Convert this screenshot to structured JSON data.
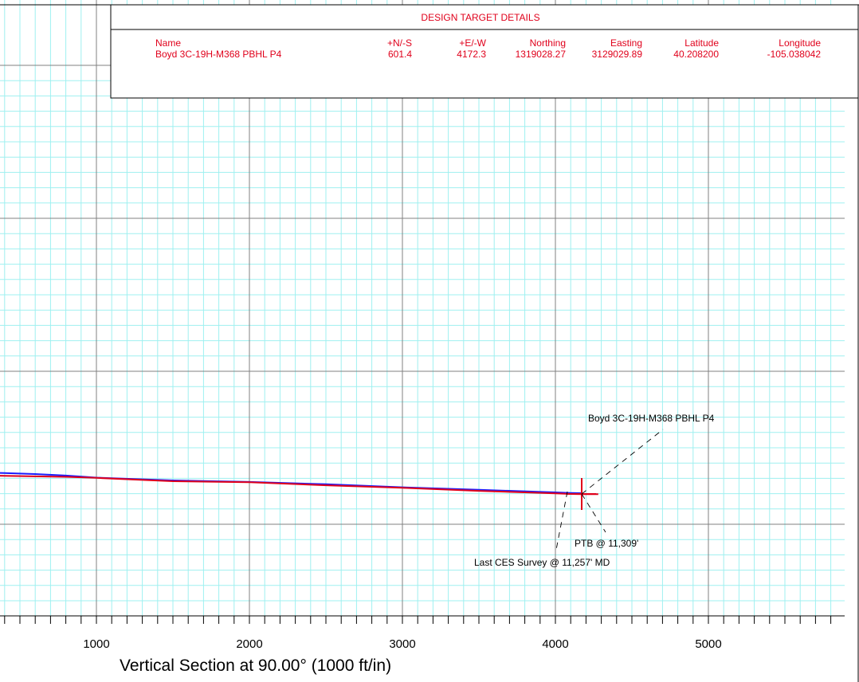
{
  "target_table": {
    "title": "DESIGN TARGET DETAILS",
    "headers": [
      "Name",
      "+N/-S",
      "+E/-W",
      "Northing",
      "Easting",
      "Latitude",
      "Longitude"
    ],
    "row": [
      "Boyd 3C-19H-M368 PBHL P4",
      "601.4",
      "4172.3",
      "1319028.27",
      "3129029.89",
      "40.208200",
      "-105.038042"
    ]
  },
  "chart_data": {
    "type": "line",
    "xlabel": "Vertical Section at 90.00° (1000 ft/in)",
    "xlim": [
      -620,
      5900
    ],
    "x_ticks": [
      1000,
      2000,
      3000,
      4000,
      5000
    ],
    "tick_labels": [
      "1000",
      "2000",
      "3000",
      "4000",
      "5000"
    ],
    "grid": true,
    "colors": {
      "planned": "#1a1aff",
      "actual": "#e0001b",
      "grid_minor": "#9ff0f0",
      "grid_major": "#808080"
    },
    "series": [
      {
        "x": [
          -620,
          -400,
          -200,
          0,
          200,
          400,
          600,
          800,
          1000,
          1500,
          2000,
          2500,
          3000,
          3500,
          4000,
          4100,
          4172
        ],
        "y": [
          613,
          612.3,
          611.6,
          611.1,
          611.2,
          611.4,
          611.8,
          612.4,
          613.2,
          614.3,
          614.9,
          615.8,
          617.0,
          618.0,
          619.0,
          619.2,
          619.3
        ]
      },
      {
        "x": [
          -620,
          -400,
          -200,
          0,
          200,
          400,
          600,
          800,
          1000,
          1500,
          2000,
          2500,
          3000,
          3500,
          4000,
          4100,
          4172,
          4280
        ],
        "y": [
          613,
          612.8,
          612.4,
          612.2,
          612.3,
          612.5,
          612.7,
          612.9,
          613.3,
          614.6,
          615.0,
          616.2,
          617.2,
          618.4,
          619.4,
          619.6,
          619.7,
          619.7
        ]
      }
    ],
    "annotations": [
      {
        "text": "Boyd 3C-19H-M368 PBHL P4"
      },
      {
        "text": "PTB @ 11,309'"
      },
      {
        "text": "Last CES Survey @ 11,257' MD"
      }
    ]
  }
}
